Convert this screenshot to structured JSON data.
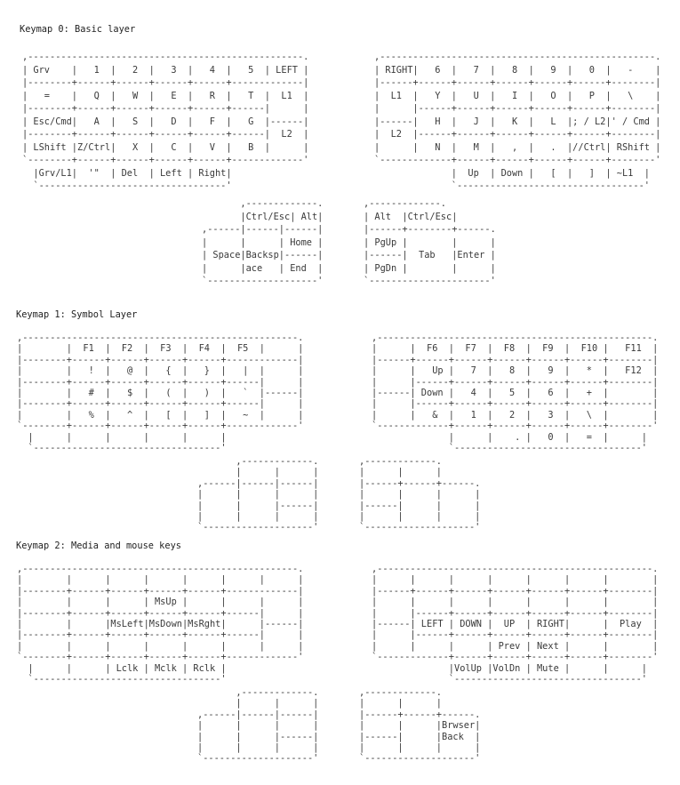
{
  "layers": [
    {
      "title": "Keymap 0: Basic layer",
      "left": [
        ",--------------------------------------------------.",
        "| Grv    |   1  |   2  |   3  |   4  |   5  | LEFT |",
        "|--------+------+------+------+------+-------------|",
        "|   =    |   Q  |   W  |   E  |   R  |   T  |  L1  |",
        "|--------+------+------+------+------+------|      |",
        "| Esc/Cmd|   A  |   S  |   D  |   F  |   G  |------|",
        "|--------+------+------+------+------+------|  L2  |",
        "| LShift |Z/Ctrl|   X  |   C  |   V  |   B  |      |",
        "`--------+------+------+------+------+-------------'",
        "  |Grv/L1|  '\"  | Del  | Left | Right|",
        "  `----------------------------------'"
      ],
      "right": [
        ",--------------------------------------------------.",
        "| RIGHT|   6  |   7  |   8  |   9  |   0  |   -    |",
        "|------+------+------+------+------+------+--------|",
        "|  L1  |   Y  |   U  |   I  |   O  |   P  |   \\    |",
        "|      |------+------+------+------+------+--------|",
        "|------|   H  |   J  |   K  |   L  |; / L2|' / Cmd |",
        "|  L2  |------+------+------+------+------+--------|",
        "|      |   N  |   M  |   ,  |   .  |//Ctrl| RShift |",
        "`-------------+------+------+------+------+--------'",
        "              |  Up  | Down |   [  |   ]  | ~L1  |",
        "              `----------------------------------'"
      ],
      "thumb_left": [
        "       ,-------------.",
        "       |Ctrl/Esc| Alt|",
        ",------|------|------|",
        "|      |      | Home |",
        "| Space|Backsp|------|",
        "|      |ace   | End  |",
        "`--------------------'"
      ],
      "thumb_right": [
        ",-------------.",
        "| Alt  |Ctrl/Esc|",
        "|------+--------+------.",
        "| PgUp |        |      |",
        "|------|  Tab   |Enter |",
        "| PgDn |        |      |",
        "`----------------------'"
      ]
    },
    {
      "title": "Keymap 1: Symbol Layer",
      "left": [
        ",--------------------------------------------------.",
        "|        |  F1  |  F2  |  F3  |  F4  |  F5  |      |",
        "|--------+------+------+------+------+-------------|",
        "|        |   !  |   @  |   {  |   }  |   |  |      |",
        "|--------+------+------+------+------+------|      |",
        "|        |   #  |   $  |   (  |   )  |   `  |------|",
        "|--------+------+------+------+------+------|      |",
        "|        |   %  |   ^  |   [  |   ]  |   ~  |      |",
        "`--------+------+------+------+------+-------------'",
        "  |      |      |      |      |      |",
        "  `----------------------------------'"
      ],
      "right": [
        ",--------------------------------------------------.",
        "|      |  F6  |  F7  |  F8  |  F9  |  F10 |   F11  |",
        "|------+------+------+------+------+------+--------|",
        "|      |   Up |   7  |   8  |   9  |   *  |   F12  |",
        "|      |------+------+------+------+------+--------|",
        "|------| Down |   4  |   5  |   6  |   +  |        |",
        "|      |------+------+------+------+------+--------|",
        "|      |   &  |   1  |   2  |   3  |   \\  |        |",
        "`-------------+------+------+------+------+--------'",
        "              |      |    . |   0  |   =  |      |",
        "              `----------------------------------'"
      ],
      "thumb_left": [
        "       ,-------------.",
        "       |      |      |",
        ",------|------|------|",
        "|      |      |      |",
        "|      |      |------|",
        "|      |      |      |",
        "`--------------------'"
      ],
      "thumb_right": [
        ",-------------.",
        "|      |      |",
        "|------+------+------.",
        "|      |      |      |",
        "|------|      |      |",
        "|      |      |      |",
        "`--------------------'"
      ]
    },
    {
      "title": "Keymap 2: Media and mouse keys",
      "left": [
        ",--------------------------------------------------.",
        "|        |      |      |      |      |      |      |",
        "|--------+------+------+------+------+-------------|",
        "|        |      |      | MsUp |      |      |      |",
        "|--------+------+------+------+------+------|      |",
        "|        |      |MsLeft|MsDown|MsRght|      |------|",
        "|--------+------+------+------+------+------|      |",
        "|        |      |      |      |      |      |      |",
        "`--------+------+------+------+------+-------------'",
        "  |      |      | Lclk | Mclk | Rclk |",
        "  `----------------------------------'"
      ],
      "right": [
        ",--------------------------------------------------.",
        "|      |      |      |      |      |      |        |",
        "|------+------+------+------+------+------+--------|",
        "|      |      |      |      |      |      |        |",
        "|      |------+------+------+------+------+--------|",
        "|------| LEFT | DOWN |  UP  | RIGHT|      |  Play  |",
        "|      |------+------+------+------+------+--------|",
        "|      |      |      | Prev | Next |      |        |",
        "`-------------+------+------+------+------+--------'",
        "              |VolUp |VolDn | Mute |      |      |",
        "              `----------------------------------'"
      ],
      "thumb_left": [
        "       ,-------------.",
        "       |      |      |",
        ",------|------|------|",
        "|      |      |      |",
        "|      |      |------|",
        "|      |      |      |",
        "`--------------------'"
      ],
      "thumb_right": [
        ",-------------.",
        "|      |      |",
        "|------+------+------.",
        "|      |      |Brwser|",
        "|------|      |Back  |",
        "|      |      |      |",
        "`--------------------'"
      ]
    }
  ]
}
